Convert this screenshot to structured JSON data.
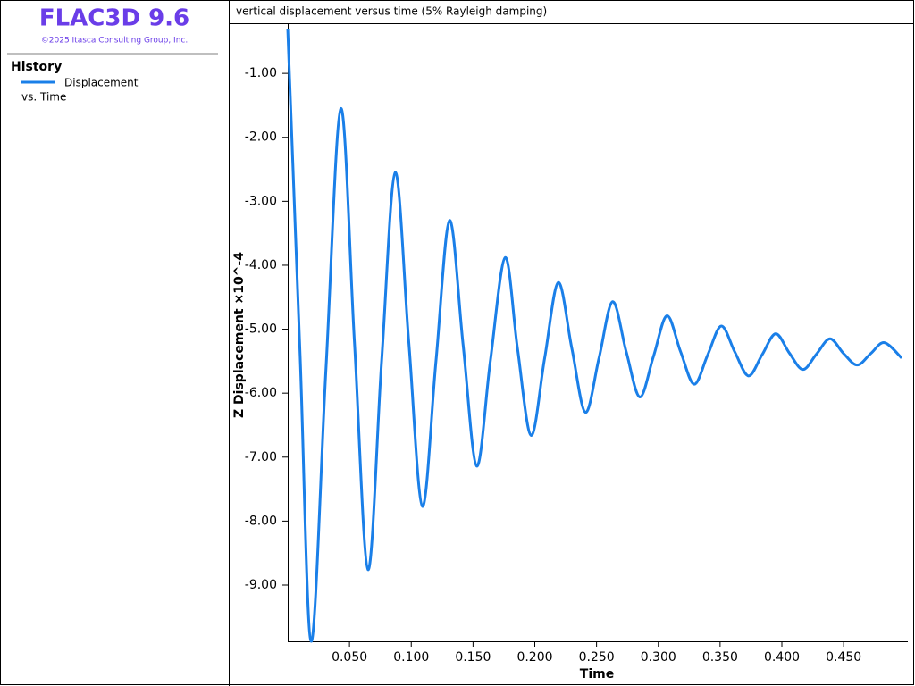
{
  "app": {
    "title": "FLAC3D 9.6",
    "copyright": "©2025 Itasca Consulting Group, Inc.",
    "section": "History",
    "legend_suffix": "vs. Time"
  },
  "chart_data": {
    "type": "line",
    "title": "vertical displacement versus time (5% Rayleigh damping)",
    "x_label": "Time",
    "y_label": "Z Displacement ×10^-4",
    "x": [
      0.0,
      0.01,
      0.019,
      0.031,
      0.043,
      0.054,
      0.065,
      0.076,
      0.087,
      0.098,
      0.109,
      0.12,
      0.131,
      0.142,
      0.153,
      0.164,
      0.176,
      0.186,
      0.197,
      0.208,
      0.219,
      0.23,
      0.241,
      0.252,
      0.263,
      0.274,
      0.285,
      0.296,
      0.307,
      0.318,
      0.329,
      0.34,
      0.351,
      0.362,
      0.373,
      0.384,
      0.395,
      0.406,
      0.417,
      0.428,
      0.439,
      0.45,
      0.461,
      0.472,
      0.483,
      0.497
    ],
    "series": [
      {
        "name": "Displacement",
        "color": "#1a7fe8",
        "values": [
          -0.3,
          -5.4,
          -9.88,
          -5.6,
          -1.55,
          -5.2,
          -8.76,
          -5.5,
          -2.55,
          -5.2,
          -7.77,
          -5.5,
          -3.3,
          -5.25,
          -7.14,
          -5.5,
          -3.88,
          -5.3,
          -6.66,
          -5.45,
          -4.27,
          -5.3,
          -6.3,
          -5.45,
          -4.57,
          -5.35,
          -6.06,
          -5.43,
          -4.79,
          -5.35,
          -5.86,
          -5.4,
          -4.95,
          -5.36,
          -5.73,
          -5.4,
          -5.07,
          -5.37,
          -5.63,
          -5.39,
          -5.15,
          -5.38,
          -5.56,
          -5.38,
          -5.21,
          -5.45
        ]
      }
    ],
    "xlim": [
      0,
      0.502
    ],
    "ylim": [
      -9.88,
      -0.23
    ],
    "xticks": [
      {
        "value": 0.05,
        "label": "0.050"
      },
      {
        "value": 0.1,
        "label": "0.100"
      },
      {
        "value": 0.15,
        "label": "0.150"
      },
      {
        "value": 0.2,
        "label": "0.200"
      },
      {
        "value": 0.25,
        "label": "0.250"
      },
      {
        "value": 0.3,
        "label": "0.300"
      },
      {
        "value": 0.35,
        "label": "0.350"
      },
      {
        "value": 0.4,
        "label": "0.400"
      },
      {
        "value": 0.45,
        "label": "0.450"
      }
    ],
    "yticks": [
      {
        "value": -1,
        "label": "-1.00"
      },
      {
        "value": -2,
        "label": "-2.00"
      },
      {
        "value": -3,
        "label": "-3.00"
      },
      {
        "value": -4,
        "label": "-4.00"
      },
      {
        "value": -5,
        "label": "-5.00"
      },
      {
        "value": -6,
        "label": "-6.00"
      },
      {
        "value": -7,
        "label": "-7.00"
      },
      {
        "value": -8,
        "label": "-8.00"
      },
      {
        "value": -9,
        "label": "-9.00"
      }
    ],
    "grid": false
  }
}
